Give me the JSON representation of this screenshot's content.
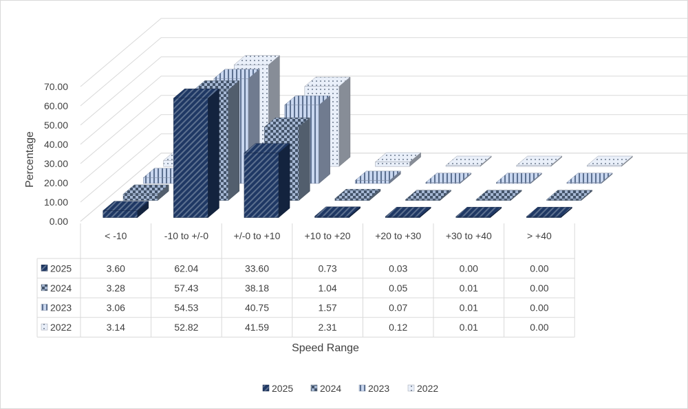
{
  "chart_data": {
    "type": "bar",
    "subtype": "3d-clustered-column-with-data-table",
    "title": "",
    "xlabel": "Speed Range",
    "ylabel": "Percentage",
    "ylim": [
      0,
      70
    ],
    "yticks": [
      "0.00",
      "10.00",
      "20.00",
      "30.00",
      "40.00",
      "50.00",
      "60.00",
      "70.00"
    ],
    "categories": [
      "< -10",
      "-10 to +/-0",
      "+/-0 to +10",
      "+10 to +20",
      "+20 to +30",
      "+30 to +40",
      "> +40"
    ],
    "series": [
      {
        "name": "2025",
        "values": [
          "3.60",
          "62.04",
          "33.60",
          "0.73",
          "0.03",
          "0.00",
          "0.00"
        ]
      },
      {
        "name": "2024",
        "values": [
          "3.28",
          "57.43",
          "38.18",
          "1.04",
          "0.05",
          "0.01",
          "0.00"
        ]
      },
      {
        "name": "2023",
        "values": [
          "3.06",
          "54.53",
          "40.75",
          "1.57",
          "0.07",
          "0.01",
          "0.00"
        ]
      },
      {
        "name": "2022",
        "values": [
          "3.14",
          "52.82",
          "41.59",
          "2.31",
          "0.12",
          "0.01",
          "0.00"
        ]
      }
    ],
    "series_colors": [
      "#1f3864",
      "#8497b0",
      "#b4c7e7",
      "#dae3f3"
    ],
    "grid": true,
    "legend_position": "bottom",
    "data_table": true
  }
}
